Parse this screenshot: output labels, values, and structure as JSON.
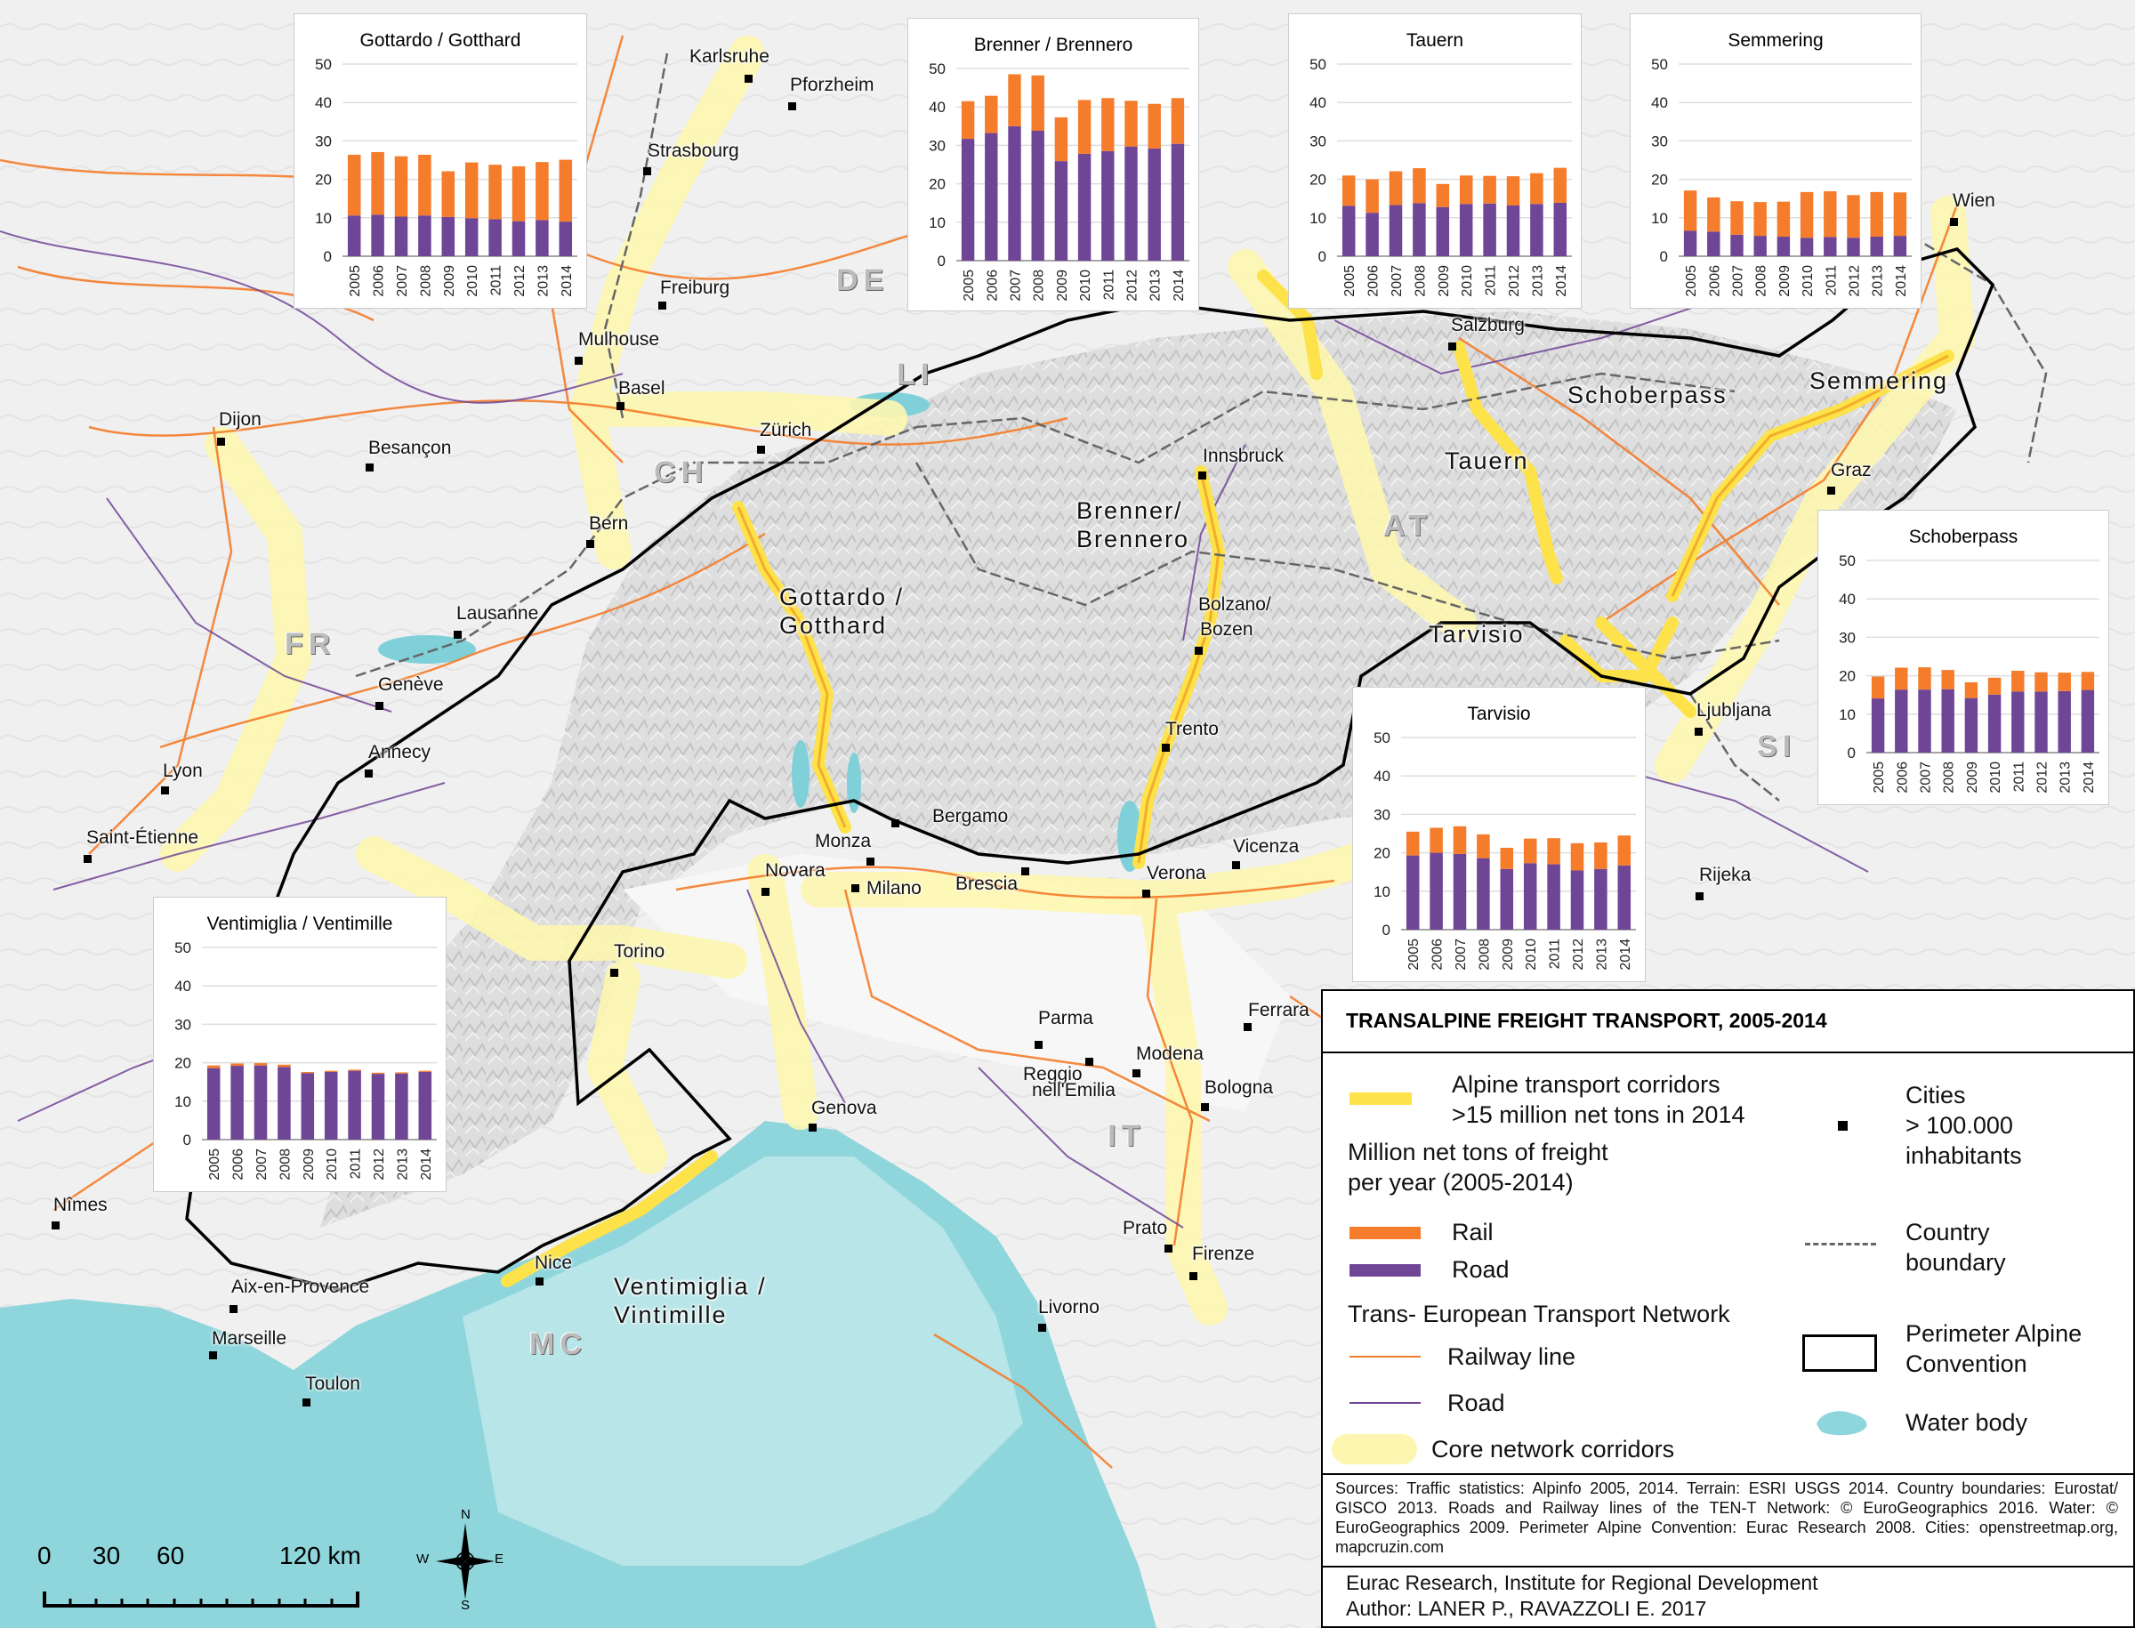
{
  "legend": {
    "title": "TRANSALPINE FREIGHT TRANSPORT, 2005-2014",
    "corridors_label_1": "Alpine transport corridors",
    "corridors_label_2": ">15 million net tons in 2014",
    "million_label_1": "Million net tons of freight",
    "million_label_2": "per year (2005-2014)",
    "rail": "Rail",
    "road": "Road",
    "ten_t": "Trans- European Transport Network",
    "railway_line": "Railway line",
    "road_line": "Road",
    "core_corridors": "Core network corridors",
    "cities_1": "Cities",
    "cities_2": "> 100.000",
    "cities_3": "inhabitants",
    "country_1": "Country",
    "country_2": "boundary",
    "perimeter_1": "Perimeter Alpine",
    "perimeter_2": "Convention",
    "water": "Water body",
    "sources": "Sources: Traffic statistics: Alpinfo 2005, 2014. Terrain: ESRI USGS 2014. Country boundaries: Eurostat/ GISCO 2013. Roads and Railway lines of the TEN-T Network: © EuroGeographics 2016. Water: © EuroGeographics 2009. Perimeter Alpine Convention: Eurac Research 2008. Cities: openstreetmap.org, mapcruzin.com",
    "institute": "Eurac Research, Institute for Regional Development",
    "author": "Author: LANER P., RAVAZZOLI E. 2017",
    "colors": {
      "rail": "#f47c2a",
      "road": "#6f4596",
      "corridor": "#fde24a",
      "core": "#fdf6b0",
      "water": "#8fd6dc"
    }
  },
  "scale": {
    "labels": [
      "0",
      "30",
      "60",
      "120 km"
    ]
  },
  "compass": {
    "n": "N",
    "s": "S",
    "e": "E",
    "w": "W"
  },
  "countries": {
    "de": "DE",
    "li": "LI",
    "ch": "CH",
    "at": "AT",
    "fr": "FR",
    "si": "SI",
    "it": "IT",
    "mc": "MC"
  },
  "corridors": {
    "gotthard": [
      "Gottardo /",
      "Gotthard"
    ],
    "brenner": [
      "Brenner/",
      "Brennero"
    ],
    "tauern": "Tauern",
    "schober": "Schoberpass",
    "semmering": "Semmering",
    "tarvisio": "Tarvisio",
    "ventimiglia": [
      "Ventimiglia /",
      "Vintimille"
    ]
  },
  "cities": [
    "Karlsruhe",
    "Pforzheim",
    "Strasbourg",
    "Freiburg",
    "Mulhouse",
    "Basel",
    "Zürich",
    "Dijon",
    "Besançon",
    "Bern",
    "Lausanne",
    "Genève",
    "Annecy",
    "Lyon",
    "Saint-Étienne",
    "Torino",
    "Novara",
    "Monza",
    "Milano",
    "Bergamo",
    "Brescia",
    "Verona",
    "Vicenza",
    "Trento",
    "Bolzano/",
    "Bozen",
    "Innsbruck",
    "Salzburg",
    "Wien",
    "Graz",
    "Ljubljana",
    "Rijeka",
    "Parma",
    "Reggio",
    "nell'Emilia",
    "Modena",
    "Ferrara",
    "Bologna",
    "Genova",
    "Prato",
    "Firenze",
    "Livorno",
    "Nice",
    "Nîmes",
    "Aix-en-Provence",
    "Marseille",
    "Toulon"
  ],
  "chart_data": [
    {
      "type": "bar",
      "title": "Gottardo / Gotthard",
      "categories": [
        "2005",
        "2006",
        "2007",
        "2008",
        "2009",
        "2010",
        "2011",
        "2012",
        "2013",
        "2014"
      ],
      "ylim": [
        0,
        50
      ],
      "yticks": [
        0,
        10,
        20,
        30,
        40,
        50
      ],
      "series": [
        {
          "name": "Road",
          "values": [
            10.6,
            10.8,
            10.3,
            10.6,
            10.2,
            9.9,
            9.6,
            9.1,
            9.4,
            9.0
          ]
        },
        {
          "name": "Rail",
          "values": [
            15.8,
            16.3,
            15.7,
            15.8,
            11.9,
            14.5,
            14.2,
            14.3,
            15.1,
            16.1
          ]
        }
      ]
    },
    {
      "type": "bar",
      "title": "Brenner / Brennero",
      "categories": [
        "2005",
        "2006",
        "2007",
        "2008",
        "2009",
        "2010",
        "2011",
        "2012",
        "2013",
        "2014"
      ],
      "ylim": [
        0,
        50
      ],
      "yticks": [
        0,
        10,
        20,
        30,
        40,
        50
      ],
      "series": [
        {
          "name": "Road",
          "values": [
            31.7,
            33.2,
            35.0,
            33.8,
            25.9,
            27.8,
            28.5,
            29.7,
            29.2,
            30.4
          ]
        },
        {
          "name": "Rail",
          "values": [
            9.8,
            9.7,
            13.5,
            14.4,
            11.4,
            14.0,
            13.8,
            11.9,
            11.6,
            11.9
          ]
        }
      ]
    },
    {
      "type": "bar",
      "title": "Tauern",
      "categories": [
        "2005",
        "2006",
        "2007",
        "2008",
        "2009",
        "2010",
        "2011",
        "2012",
        "2013",
        "2014"
      ],
      "ylim": [
        0,
        50
      ],
      "yticks": [
        0,
        10,
        20,
        30,
        40,
        50
      ],
      "series": [
        {
          "name": "Road",
          "values": [
            13.1,
            11.3,
            13.3,
            13.8,
            12.8,
            13.6,
            13.7,
            13.2,
            13.6,
            13.9
          ]
        },
        {
          "name": "Rail",
          "values": [
            7.9,
            8.7,
            8.8,
            9.1,
            6.0,
            7.4,
            7.2,
            7.6,
            8.0,
            9.1
          ]
        }
      ]
    },
    {
      "type": "bar",
      "title": "Semmering",
      "categories": [
        "2005",
        "2006",
        "2007",
        "2008",
        "2009",
        "2010",
        "2011",
        "2012",
        "2013",
        "2014"
      ],
      "ylim": [
        0,
        50
      ],
      "yticks": [
        0,
        10,
        20,
        30,
        40,
        50
      ],
      "series": [
        {
          "name": "Road",
          "values": [
            6.6,
            6.4,
            5.6,
            5.3,
            5.1,
            4.8,
            5.0,
            4.8,
            5.1,
            5.3
          ]
        },
        {
          "name": "Rail",
          "values": [
            10.5,
            8.9,
            8.7,
            8.8,
            9.1,
            11.9,
            11.9,
            11.1,
            11.6,
            11.3
          ]
        }
      ]
    },
    {
      "type": "bar",
      "title": "Schoberpass",
      "categories": [
        "2005",
        "2006",
        "2007",
        "2008",
        "2009",
        "2010",
        "2011",
        "2012",
        "2013",
        "2014"
      ],
      "ylim": [
        0,
        50
      ],
      "yticks": [
        0,
        10,
        20,
        30,
        40,
        50
      ],
      "series": [
        {
          "name": "Road",
          "values": [
            14.1,
            16.4,
            16.4,
            16.5,
            14.2,
            15.1,
            15.9,
            15.9,
            16.0,
            16.3
          ]
        },
        {
          "name": "Rail",
          "values": [
            5.7,
            5.7,
            5.8,
            5.0,
            4.1,
            4.4,
            5.4,
            5.0,
            4.8,
            4.7
          ]
        }
      ]
    },
    {
      "type": "bar",
      "title": "Tarvisio",
      "categories": [
        "2005",
        "2006",
        "2007",
        "2008",
        "2009",
        "2010",
        "2011",
        "2012",
        "2013",
        "2014"
      ],
      "ylim": [
        0,
        50
      ],
      "yticks": [
        0,
        10,
        20,
        30,
        40,
        50
      ],
      "series": [
        {
          "name": "Road",
          "values": [
            19.3,
            20.0,
            19.7,
            18.6,
            15.8,
            17.3,
            17.0,
            15.4,
            15.8,
            16.7
          ]
        },
        {
          "name": "Rail",
          "values": [
            6.2,
            6.5,
            7.2,
            6.2,
            5.5,
            6.4,
            6.8,
            7.1,
            6.9,
            7.8
          ]
        }
      ]
    },
    {
      "type": "bar",
      "title": "Ventimiglia / Ventimille",
      "categories": [
        "2005",
        "2006",
        "2007",
        "2008",
        "2009",
        "2010",
        "2011",
        "2012",
        "2013",
        "2014"
      ],
      "ylim": [
        0,
        50
      ],
      "yticks": [
        0,
        10,
        20,
        30,
        40,
        50
      ],
      "series": [
        {
          "name": "Road",
          "values": [
            18.6,
            19.2,
            19.3,
            18.9,
            17.3,
            17.6,
            17.9,
            17.1,
            17.2,
            17.6
          ]
        },
        {
          "name": "Rail",
          "values": [
            0.7,
            0.6,
            0.6,
            0.6,
            0.3,
            0.3,
            0.3,
            0.3,
            0.3,
            0.3
          ]
        }
      ]
    }
  ]
}
